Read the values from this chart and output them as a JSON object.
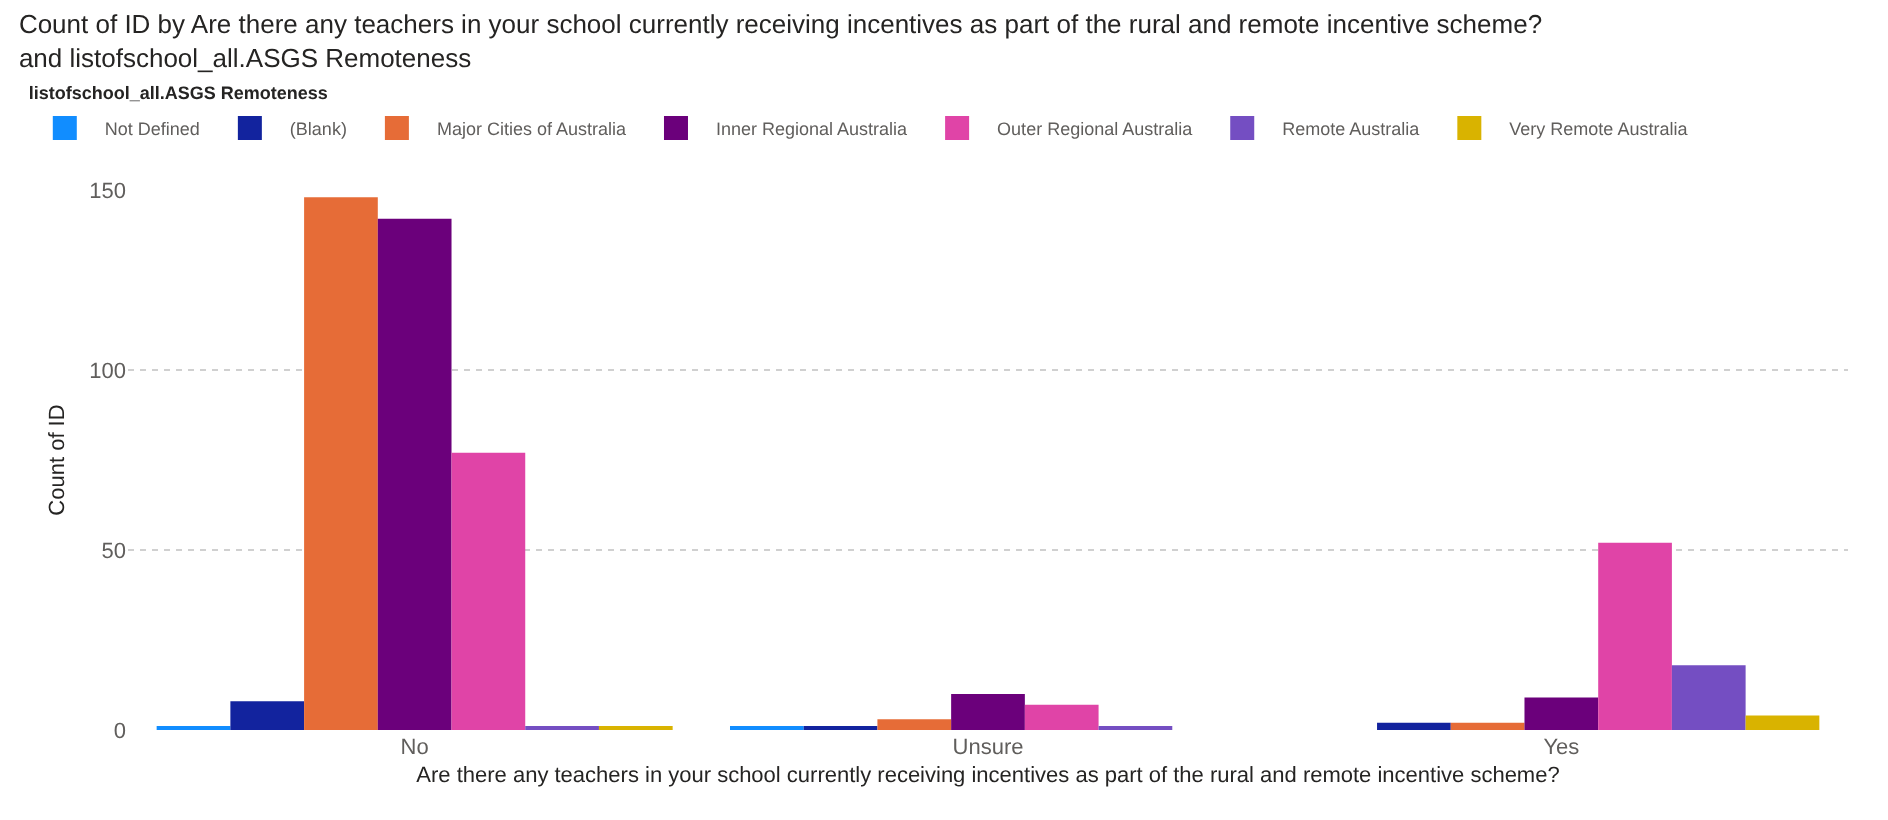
{
  "chart_data": {
    "type": "bar",
    "title": "Count of ID by Are there any teachers in your school currently receiving incentives as part of the rural and remote incentive scheme? and listofschool_all.ASGS Remoteness",
    "xlabel": "Are there any teachers in your school currently receiving incentives as part of the rural and remote incentive scheme?",
    "ylabel": "Count of ID",
    "legend_title": "listofschool_all.ASGS Remoteness",
    "categories": [
      "No",
      "Unsure",
      "Yes"
    ],
    "series": [
      {
        "name": "Not Defined",
        "color": "#118dff",
        "values": [
          1,
          1,
          null
        ]
      },
      {
        "name": "(Blank)",
        "color": "#12239e",
        "values": [
          8,
          1,
          2
        ]
      },
      {
        "name": "Major Cities of Australia",
        "color": "#e66c37",
        "values": [
          148,
          3,
          2
        ]
      },
      {
        "name": "Inner Regional Australia",
        "color": "#6b007b",
        "values": [
          142,
          10,
          9
        ]
      },
      {
        "name": "Outer Regional Australia",
        "color": "#e044a7",
        "values": [
          77,
          7,
          52
        ]
      },
      {
        "name": "Remote Australia",
        "color": "#744ec2",
        "values": [
          1,
          1,
          18
        ]
      },
      {
        "name": "Very Remote Australia",
        "color": "#d9b300",
        "values": [
          1,
          null,
          4
        ]
      }
    ],
    "ylim": [
      0,
      150
    ],
    "yticks": [
      0,
      50,
      100,
      150
    ],
    "grid": "y",
    "legend": "top left"
  }
}
